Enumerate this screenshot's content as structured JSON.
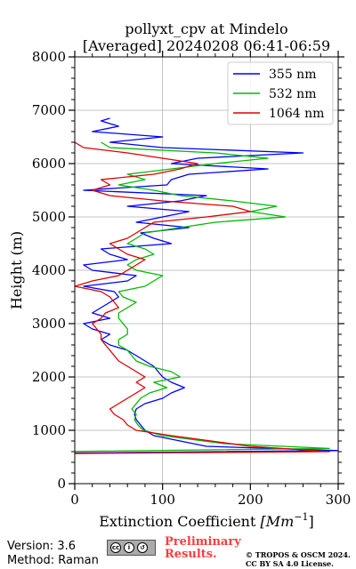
{
  "chart_data": {
    "type": "line",
    "title_lines": [
      "pollyxt_cpv at Mindelo",
      "[Averaged] 20240208 06:41-06:59"
    ],
    "xlabel_main": "Extinction Coefficient ",
    "xlabel_unit": "[Mm",
    "xlabel_exp": "−1",
    "xlabel_close": "]",
    "ylabel": "Height (m)",
    "xlim": [
      0,
      300
    ],
    "ylim": [
      0,
      8000
    ],
    "x_ticks": [
      "0",
      "100",
      "200",
      "300"
    ],
    "x_tick_values": [
      0,
      100,
      200,
      300
    ],
    "y_ticks": [
      "0",
      "1000",
      "2000",
      "3000",
      "4000",
      "5000",
      "6000",
      "7000",
      "8000"
    ],
    "y_tick_values": [
      0,
      1000,
      2000,
      3000,
      4000,
      5000,
      6000,
      7000,
      8000
    ],
    "grid": true,
    "legend_position": "top-right",
    "series": [
      {
        "name": "355 nm",
        "color": "#0000ff",
        "points": [
          [
            -300,
            530
          ],
          [
            300,
            620
          ],
          [
            150,
            700
          ],
          [
            90,
            900
          ],
          [
            80,
            1000
          ],
          [
            75,
            1100
          ],
          [
            70,
            1200
          ],
          [
            68,
            1300
          ],
          [
            70,
            1400
          ],
          [
            80,
            1500
          ],
          [
            100,
            1600
          ],
          [
            110,
            1700
          ],
          [
            125,
            1800
          ],
          [
            110,
            1900
          ],
          [
            100,
            2000
          ],
          [
            95,
            2100
          ],
          [
            90,
            2200
          ],
          [
            80,
            2300
          ],
          [
            70,
            2400
          ],
          [
            60,
            2500
          ],
          [
            40,
            2600
          ],
          [
            30,
            2700
          ],
          [
            40,
            2800
          ],
          [
            20,
            2900
          ],
          [
            10,
            3000
          ],
          [
            40,
            3100
          ],
          [
            20,
            3200
          ],
          [
            30,
            3300
          ],
          [
            40,
            3400
          ],
          [
            50,
            3500
          ],
          [
            45,
            3600
          ],
          [
            10,
            3700
          ],
          [
            60,
            3800
          ],
          [
            70,
            3900
          ],
          [
            20,
            4000
          ],
          [
            10,
            4100
          ],
          [
            60,
            4200
          ],
          [
            40,
            4300
          ],
          [
            30,
            4400
          ],
          [
            110,
            4500
          ],
          [
            90,
            4600
          ],
          [
            75,
            4700
          ],
          [
            130,
            4800
          ],
          [
            70,
            4900
          ],
          [
            100,
            5000
          ],
          [
            130,
            5100
          ],
          [
            60,
            5200
          ],
          [
            120,
            5300
          ],
          [
            150,
            5400
          ],
          [
            10,
            5500
          ],
          [
            105,
            5600
          ],
          [
            110,
            5700
          ],
          [
            130,
            5800
          ],
          [
            220,
            5900
          ],
          [
            110,
            6000
          ],
          [
            140,
            6100
          ],
          [
            260,
            6200
          ],
          [
            100,
            6300
          ],
          [
            40,
            6400
          ],
          [
            100,
            6500
          ],
          [
            20,
            6600
          ],
          [
            50,
            6700
          ],
          [
            30,
            6800
          ],
          [
            40,
            6850
          ]
        ]
      },
      {
        "name": "532 nm",
        "color": "#00bb00",
        "points": [
          [
            -300,
            545
          ],
          [
            290,
            660
          ],
          [
            170,
            750
          ],
          [
            100,
            900
          ],
          [
            78,
            1000
          ],
          [
            72,
            1100
          ],
          [
            68,
            1200
          ],
          [
            70,
            1300
          ],
          [
            65,
            1400
          ],
          [
            70,
            1500
          ],
          [
            75,
            1600
          ],
          [
            85,
            1700
          ],
          [
            105,
            1800
          ],
          [
            90,
            1900
          ],
          [
            120,
            2000
          ],
          [
            110,
            2100
          ],
          [
            85,
            2200
          ],
          [
            70,
            2300
          ],
          [
            65,
            2400
          ],
          [
            60,
            2500
          ],
          [
            50,
            2600
          ],
          [
            50,
            2700
          ],
          [
            60,
            2800
          ],
          [
            60,
            2900
          ],
          [
            55,
            3000
          ],
          [
            50,
            3100
          ],
          [
            50,
            3200
          ],
          [
            60,
            3300
          ],
          [
            70,
            3400
          ],
          [
            55,
            3500
          ],
          [
            50,
            3600
          ],
          [
            80,
            3700
          ],
          [
            90,
            3800
          ],
          [
            100,
            3900
          ],
          [
            70,
            4000
          ],
          [
            60,
            4100
          ],
          [
            70,
            4200
          ],
          [
            90,
            4300
          ],
          [
            80,
            4400
          ],
          [
            60,
            4500
          ],
          [
            70,
            4600
          ],
          [
            80,
            4700
          ],
          [
            120,
            4800
          ],
          [
            160,
            4900
          ],
          [
            240,
            5000
          ],
          [
            200,
            5100
          ],
          [
            230,
            5200
          ],
          [
            180,
            5300
          ],
          [
            120,
            5400
          ],
          [
            90,
            5500
          ],
          [
            50,
            5600
          ],
          [
            80,
            5700
          ],
          [
            60,
            5800
          ],
          [
            110,
            5900
          ],
          [
            160,
            6000
          ],
          [
            220,
            6100
          ],
          [
            160,
            6200
          ],
          [
            40,
            6300
          ],
          [
            30,
            6400
          ]
        ]
      },
      {
        "name": "1064 nm",
        "color": "#dd0000",
        "points": [
          [
            -300,
            530
          ],
          [
            290,
            600
          ],
          [
            200,
            700
          ],
          [
            110,
            900
          ],
          [
            70,
            1000
          ],
          [
            60,
            1100
          ],
          [
            55,
            1200
          ],
          [
            45,
            1300
          ],
          [
            40,
            1400
          ],
          [
            50,
            1500
          ],
          [
            60,
            1600
          ],
          [
            70,
            1700
          ],
          [
            80,
            1800
          ],
          [
            70,
            1900
          ],
          [
            80,
            2000
          ],
          [
            70,
            2100
          ],
          [
            60,
            2200
          ],
          [
            50,
            2300
          ],
          [
            45,
            2400
          ],
          [
            40,
            2500
          ],
          [
            35,
            2600
          ],
          [
            30,
            2700
          ],
          [
            30,
            2800
          ],
          [
            25,
            2900
          ],
          [
            20,
            3000
          ],
          [
            30,
            3100
          ],
          [
            35,
            3200
          ],
          [
            50,
            3300
          ],
          [
            45,
            3400
          ],
          [
            40,
            3500
          ],
          [
            30,
            3600
          ],
          [
            0,
            3700
          ],
          [
            20,
            3800
          ],
          [
            50,
            3900
          ],
          [
            60,
            4000
          ],
          [
            70,
            4100
          ],
          [
            80,
            4200
          ],
          [
            60,
            4300
          ],
          [
            50,
            4400
          ],
          [
            40,
            4500
          ],
          [
            60,
            4600
          ],
          [
            70,
            4700
          ],
          [
            80,
            4800
          ],
          [
            90,
            4900
          ],
          [
            150,
            5000
          ],
          [
            200,
            5100
          ],
          [
            180,
            5200
          ],
          [
            100,
            5300
          ],
          [
            40,
            5400
          ],
          [
            20,
            5500
          ],
          [
            40,
            5600
          ],
          [
            30,
            5700
          ],
          [
            90,
            5800
          ],
          [
            120,
            5900
          ],
          [
            140,
            6000
          ],
          [
            100,
            6100
          ],
          [
            60,
            6200
          ],
          [
            10,
            6300
          ],
          [
            0,
            6400
          ]
        ]
      }
    ]
  },
  "footer": {
    "version": "Version: 3.6",
    "method": "Method: Raman",
    "preliminary_1": "Preliminary",
    "preliminary_2": "Results.",
    "copyright_1": "© TROPOS & OSCM 2024.",
    "copyright_2": "CC BY SA 4.0 License."
  }
}
